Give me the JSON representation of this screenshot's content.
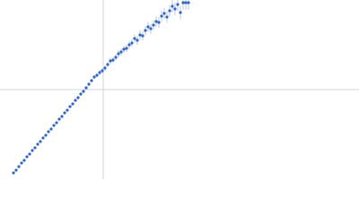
{
  "chart_data": {
    "type": "scatter",
    "color": "#3567c0",
    "error_color": "#a9bde0",
    "xlim": [
      0,
      400
    ],
    "ylim": [
      0,
      200
    ],
    "xline": 115,
    "yline": 100,
    "line_color": "#cfd6e0",
    "series": [
      {
        "x": [
          15,
          18,
          21,
          24,
          27,
          30,
          33,
          36,
          39,
          42,
          45,
          48,
          51,
          54,
          57,
          60,
          63,
          66,
          69,
          72,
          75,
          78,
          81,
          84,
          87,
          90,
          93,
          96,
          99,
          102,
          105,
          108,
          111,
          114,
          117,
          120,
          123,
          126,
          129,
          132,
          135,
          138,
          141,
          144,
          147,
          150,
          153,
          156,
          159,
          162,
          165,
          168,
          171,
          174,
          177,
          180,
          183,
          186,
          189,
          192,
          195,
          198,
          201,
          204,
          207,
          210
        ],
        "values": [
          7,
          10,
          14,
          18,
          21,
          25,
          28,
          32,
          35,
          39,
          42,
          46,
          49,
          53,
          56,
          60,
          63,
          67,
          70,
          74,
          77,
          81,
          84,
          88,
          91,
          95,
          98,
          102,
          106,
          110,
          114,
          116,
          119,
          121,
          124,
          128,
          132,
          133,
          136,
          140,
          142,
          145,
          146,
          150,
          152,
          157,
          155,
          161,
          160,
          166,
          170,
          168,
          172,
          176,
          175,
          182,
          185,
          181,
          188,
          193,
          190,
          195,
          186,
          197,
          197,
          197
        ],
        "errors": [
          1,
          1,
          1,
          1,
          1,
          1,
          1,
          1,
          1,
          1,
          1,
          1,
          1,
          1,
          1,
          1,
          1.5,
          1.5,
          1.5,
          1.5,
          1.5,
          1.5,
          1.5,
          2,
          2,
          2,
          2,
          2,
          2,
          2,
          2,
          2,
          3,
          3,
          3,
          3,
          3.5,
          3.5,
          3.5,
          4,
          4,
          4,
          4,
          4.5,
          4.5,
          4.5,
          5,
          5,
          5,
          5,
          5.5,
          5.5,
          5.5,
          6,
          6,
          6,
          6,
          6.5,
          6.5,
          7,
          7,
          7,
          7.5,
          7.5,
          8,
          8
        ]
      }
    ]
  }
}
